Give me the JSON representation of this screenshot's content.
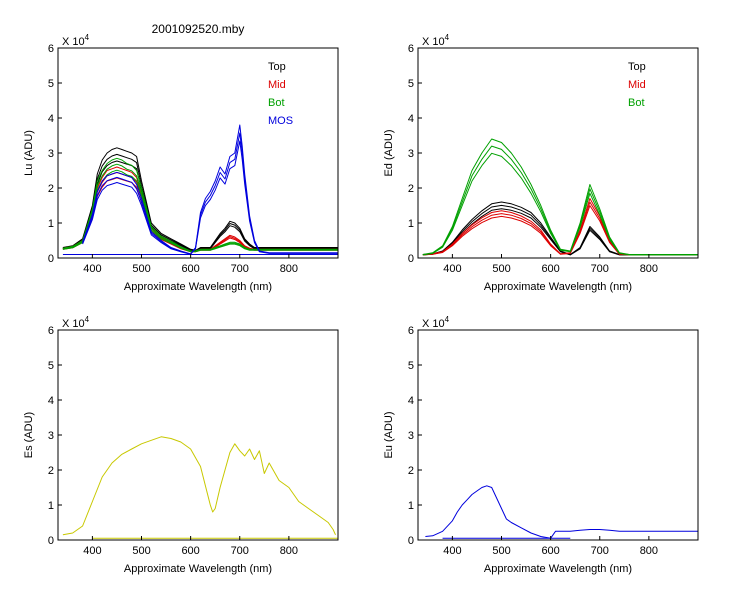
{
  "figure_title": "2001092520.mby",
  "colors": {
    "Top": "#000000",
    "Mid": "#dd0000",
    "Bot": "#00a000",
    "MOS": "#0000dd",
    "Es": "#c8c800",
    "Eu": "#0000dd"
  },
  "chart_data": [
    {
      "type": "line",
      "title": "2001092520.mby",
      "xlabel": "Approximate Wavelength (nm)",
      "ylabel": "Lu (ADU)",
      "y_multiplier": "X 10",
      "y_multiplier_exp": "4",
      "xlim": [
        330,
        900
      ],
      "ylim": [
        0,
        6
      ],
      "xticks": [
        400,
        500,
        600,
        700,
        800
      ],
      "yticks": [
        0,
        1,
        2,
        3,
        4,
        5,
        6
      ],
      "legend": [
        "Top",
        "Mid",
        "Bot",
        "MOS"
      ],
      "legend_position": "top-right",
      "series": [
        {
          "name": "Top",
          "x": [
            340,
            360,
            380,
            400,
            410,
            420,
            430,
            440,
            450,
            460,
            470,
            480,
            490,
            500,
            520,
            540,
            560,
            580,
            600,
            610,
            620,
            630,
            640,
            650,
            660,
            670,
            680,
            690,
            700,
            710,
            720,
            730,
            740,
            760,
            800,
            850,
            900
          ],
          "y": [
            0.3,
            0.35,
            0.55,
            1.5,
            2.4,
            2.8,
            3.0,
            3.1,
            3.15,
            3.1,
            3.05,
            3.0,
            2.9,
            2.2,
            1.0,
            0.7,
            0.55,
            0.4,
            0.25,
            0.22,
            0.3,
            0.3,
            0.3,
            0.5,
            0.7,
            0.85,
            1.05,
            1.0,
            0.85,
            0.55,
            0.4,
            0.3,
            0.3,
            0.3,
            0.3,
            0.3,
            0.3
          ]
        },
        {
          "name": "Mid",
          "x": [
            340,
            360,
            380,
            400,
            410,
            420,
            430,
            440,
            450,
            460,
            470,
            480,
            490,
            500,
            520,
            540,
            560,
            580,
            600,
            610,
            620,
            630,
            640,
            650,
            660,
            670,
            680,
            690,
            700,
            710,
            720,
            730,
            740,
            760,
            800,
            850,
            900
          ],
          "y": [
            0.28,
            0.33,
            0.5,
            1.3,
            2.0,
            2.3,
            2.5,
            2.55,
            2.6,
            2.55,
            2.5,
            2.45,
            2.3,
            1.8,
            0.85,
            0.6,
            0.45,
            0.3,
            0.2,
            0.2,
            0.25,
            0.25,
            0.25,
            0.35,
            0.45,
            0.55,
            0.65,
            0.6,
            0.5,
            0.35,
            0.28,
            0.25,
            0.25,
            0.25,
            0.25,
            0.25,
            0.25
          ]
        },
        {
          "name": "Bot",
          "x": [
            340,
            360,
            380,
            400,
            410,
            420,
            430,
            440,
            450,
            460,
            470,
            480,
            490,
            500,
            520,
            540,
            560,
            580,
            600,
            610,
            620,
            630,
            640,
            650,
            660,
            670,
            680,
            690,
            700,
            710,
            720,
            730,
            740,
            760,
            800,
            850,
            900
          ],
          "y": [
            0.28,
            0.33,
            0.5,
            1.4,
            2.2,
            2.5,
            2.7,
            2.8,
            2.85,
            2.8,
            2.7,
            2.65,
            2.5,
            2.0,
            0.9,
            0.62,
            0.48,
            0.32,
            0.2,
            0.2,
            0.25,
            0.25,
            0.25,
            0.3,
            0.35,
            0.4,
            0.45,
            0.45,
            0.4,
            0.3,
            0.25,
            0.25,
            0.25,
            0.25,
            0.25,
            0.25,
            0.25
          ]
        },
        {
          "name": "MOS",
          "x": [
            380,
            400,
            410,
            420,
            430,
            440,
            450,
            460,
            470,
            480,
            490,
            500,
            520,
            540,
            560,
            580,
            600,
            610,
            620,
            630,
            640,
            650,
            660,
            670,
            680,
            690,
            700,
            705,
            710,
            720,
            730,
            740,
            760,
            800,
            850,
            900
          ],
          "y": [
            0.45,
            1.25,
            1.9,
            2.2,
            2.35,
            2.4,
            2.45,
            2.4,
            2.35,
            2.3,
            2.1,
            1.7,
            0.75,
            0.5,
            0.3,
            0.2,
            0.12,
            0.3,
            1.3,
            1.7,
            1.9,
            2.2,
            2.6,
            2.4,
            2.9,
            3.0,
            3.8,
            3.2,
            2.4,
            1.2,
            0.5,
            0.2,
            0.15,
            0.15,
            0.15,
            0.15
          ]
        }
      ]
    },
    {
      "type": "line",
      "title": "",
      "xlabel": "Approximate Wavelength (nm)",
      "ylabel": "Ed  (ADU)",
      "y_multiplier": "X 10",
      "y_multiplier_exp": "4",
      "xlim": [
        330,
        900
      ],
      "ylim": [
        0,
        6
      ],
      "xticks": [
        400,
        500,
        600,
        700,
        800
      ],
      "yticks": [
        0,
        1,
        2,
        3,
        4,
        5,
        6
      ],
      "legend": [
        "Top",
        "Mid",
        "Bot"
      ],
      "legend_position": "top-right",
      "series": [
        {
          "name": "Top",
          "x": [
            340,
            360,
            380,
            400,
            420,
            440,
            460,
            480,
            500,
            520,
            540,
            560,
            580,
            600,
            620,
            640,
            660,
            680,
            700,
            720,
            740,
            760,
            800,
            850,
            900
          ],
          "y": [
            0.1,
            0.12,
            0.2,
            0.45,
            0.8,
            1.1,
            1.35,
            1.55,
            1.6,
            1.55,
            1.45,
            1.3,
            1.0,
            0.6,
            0.2,
            0.1,
            0.3,
            0.9,
            0.6,
            0.2,
            0.1,
            0.1,
            0.1,
            0.1,
            0.1
          ]
        },
        {
          "name": "Mid",
          "x": [
            340,
            360,
            380,
            400,
            420,
            440,
            460,
            480,
            500,
            520,
            540,
            560,
            580,
            600,
            620,
            640,
            660,
            680,
            700,
            720,
            740,
            760,
            800,
            850,
            900
          ],
          "y": [
            0.1,
            0.12,
            0.18,
            0.4,
            0.7,
            0.95,
            1.15,
            1.3,
            1.35,
            1.3,
            1.2,
            1.05,
            0.8,
            0.4,
            0.12,
            0.15,
            0.8,
            1.7,
            1.2,
            0.5,
            0.12,
            0.1,
            0.1,
            0.1,
            0.1
          ]
        },
        {
          "name": "Bot",
          "x": [
            340,
            360,
            380,
            400,
            420,
            440,
            460,
            480,
            500,
            520,
            540,
            560,
            580,
            600,
            620,
            640,
            660,
            680,
            700,
            720,
            740,
            760,
            800,
            850,
            900
          ],
          "y": [
            0.1,
            0.15,
            0.35,
            0.9,
            1.7,
            2.5,
            3.0,
            3.4,
            3.3,
            3.0,
            2.6,
            2.1,
            1.5,
            0.8,
            0.25,
            0.2,
            1.0,
            2.1,
            1.4,
            0.6,
            0.15,
            0.1,
            0.1,
            0.1,
            0.1
          ]
        }
      ]
    },
    {
      "type": "line",
      "title": "",
      "xlabel": "Approximate Wavelength (nm)",
      "ylabel": "Es  (ADU)",
      "y_multiplier": "X 10",
      "y_multiplier_exp": "4",
      "xlim": [
        330,
        900
      ],
      "ylim": [
        0,
        6
      ],
      "xticks": [
        400,
        500,
        600,
        700,
        800
      ],
      "yticks": [
        0,
        1,
        2,
        3,
        4,
        5,
        6
      ],
      "legend": [],
      "series": [
        {
          "name": "",
          "x": [
            340,
            360,
            380,
            400,
            420,
            440,
            460,
            480,
            500,
            520,
            540,
            560,
            580,
            600,
            620,
            640,
            645,
            650,
            660,
            670,
            680,
            690,
            700,
            710,
            720,
            730,
            740,
            750,
            760,
            780,
            800,
            820,
            840,
            860,
            880,
            890,
            895
          ],
          "y": [
            0.15,
            0.2,
            0.4,
            1.1,
            1.8,
            2.2,
            2.45,
            2.6,
            2.75,
            2.85,
            2.95,
            2.9,
            2.8,
            2.6,
            2.1,
            1.0,
            0.8,
            0.9,
            1.5,
            2.0,
            2.5,
            2.75,
            2.55,
            2.4,
            2.6,
            2.3,
            2.55,
            1.9,
            2.2,
            1.7,
            1.5,
            1.1,
            0.9,
            0.7,
            0.5,
            0.3,
            0.15
          ]
        }
      ]
    },
    {
      "type": "line",
      "title": "",
      "xlabel": "Approximate Wavelength (nm)",
      "ylabel": "Eu  (ADU)",
      "y_multiplier": "X 10",
      "y_multiplier_exp": "4",
      "xlim": [
        330,
        900
      ],
      "ylim": [
        0,
        6
      ],
      "xticks": [
        400,
        500,
        600,
        700,
        800
      ],
      "yticks": [
        0,
        1,
        2,
        3,
        4,
        5,
        6
      ],
      "legend": [],
      "series": [
        {
          "name": "",
          "x": [
            345,
            360,
            380,
            400,
            410,
            420,
            430,
            440,
            450,
            460,
            470,
            480,
            490,
            500,
            510,
            520,
            540,
            560,
            580,
            600,
            610,
            620,
            640,
            660,
            680,
            700,
            720,
            740,
            760,
            800,
            850,
            900
          ],
          "y": [
            0.1,
            0.12,
            0.25,
            0.55,
            0.8,
            1.0,
            1.15,
            1.3,
            1.4,
            1.5,
            1.55,
            1.5,
            1.2,
            0.9,
            0.6,
            0.5,
            0.35,
            0.2,
            0.1,
            0.05,
            0.25,
            0.25,
            0.25,
            0.28,
            0.3,
            0.3,
            0.28,
            0.25,
            0.25,
            0.25,
            0.25,
            0.25
          ]
        }
      ]
    }
  ]
}
